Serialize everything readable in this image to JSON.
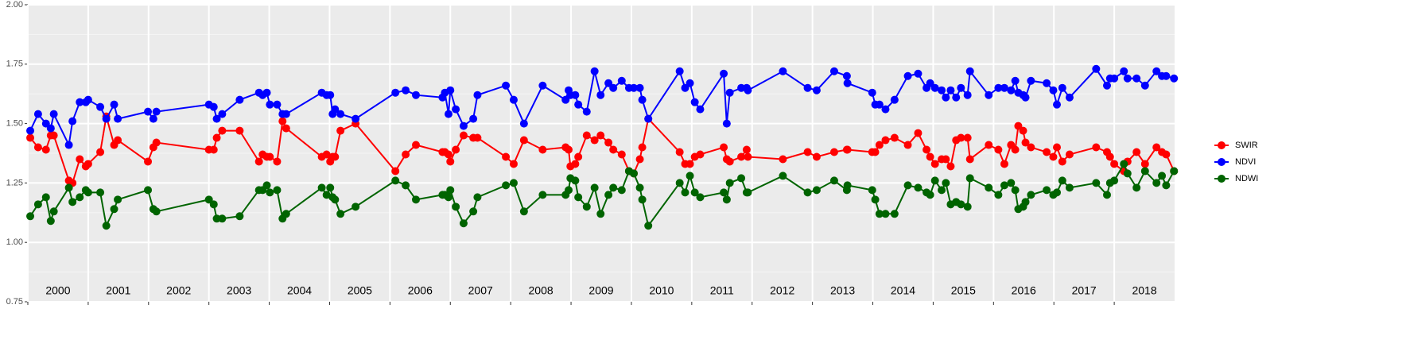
{
  "chart_data": {
    "type": "line",
    "x": [
      2000.04,
      2000.17,
      2000.3,
      2000.38,
      2000.43,
      2000.68,
      2000.74,
      2000.86,
      2000.96,
      2001.0,
      2001.2,
      2001.3,
      2001.43,
      2001.49,
      2001.99,
      2002.08,
      2002.13,
      2003.0,
      2003.08,
      2003.13,
      2003.22,
      2003.51,
      2003.83,
      2003.89,
      2003.96,
      2004.01,
      2004.13,
      2004.22,
      2004.28,
      2004.87,
      2004.95,
      2005.01,
      2005.05,
      2005.09,
      2005.18,
      2005.43,
      2006.09,
      2006.26,
      2006.43,
      2006.87,
      2006.91,
      2006.97,
      2007.0,
      2007.09,
      2007.22,
      2007.38,
      2007.45,
      2007.92,
      2008.05,
      2008.22,
      2008.53,
      2008.91,
      2008.96,
      2008.99,
      2009.07,
      2009.12,
      2009.26,
      2009.39,
      2009.49,
      2009.62,
      2009.7,
      2009.84,
      2009.96,
      2010.04,
      2010.14,
      2010.18,
      2010.28,
      2010.8,
      2010.89,
      2010.97,
      2011.05,
      2011.14,
      2011.53,
      2011.58,
      2011.63,
      2011.82,
      2011.91,
      2011.93,
      2012.51,
      2012.92,
      2013.07,
      2013.36,
      2013.57,
      2013.58,
      2013.99,
      2014.04,
      2014.11,
      2014.21,
      2014.36,
      2014.58,
      2014.75,
      2014.89,
      2014.95,
      2015.03,
      2015.14,
      2015.21,
      2015.29,
      2015.38,
      2015.46,
      2015.57,
      2015.61,
      2015.92,
      2016.08,
      2016.18,
      2016.29,
      2016.36,
      2016.41,
      2016.49,
      2016.53,
      2016.62,
      2016.88,
      2016.99,
      2017.05,
      2017.14,
      2017.26,
      2017.7,
      2017.88,
      2017.93,
      2018.0,
      2018.16,
      2018.22,
      2018.37,
      2018.51,
      2018.7,
      2018.79,
      2018.86,
      2018.99
    ],
    "series": [
      {
        "name": "SWIR",
        "color": "#ff0000",
        "values": [
          1.44,
          1.4,
          1.39,
          1.45,
          1.45,
          1.26,
          1.25,
          1.35,
          1.32,
          1.33,
          1.38,
          1.53,
          1.41,
          1.43,
          1.34,
          1.4,
          1.42,
          1.39,
          1.39,
          1.44,
          1.47,
          1.47,
          1.34,
          1.37,
          1.36,
          1.36,
          1.34,
          1.51,
          1.48,
          1.36,
          1.37,
          1.34,
          1.36,
          1.36,
          1.47,
          1.5,
          1.3,
          1.37,
          1.41,
          1.38,
          1.38,
          1.37,
          1.34,
          1.39,
          1.45,
          1.44,
          1.44,
          1.36,
          1.33,
          1.43,
          1.39,
          1.4,
          1.39,
          1.32,
          1.33,
          1.36,
          1.45,
          1.43,
          1.45,
          1.42,
          1.39,
          1.37,
          1.3,
          1.29,
          1.35,
          1.4,
          1.52,
          1.38,
          1.33,
          1.33,
          1.36,
          1.37,
          1.4,
          1.35,
          1.34,
          1.36,
          1.39,
          1.36,
          1.35,
          1.38,
          1.36,
          1.38,
          1.39,
          1.39,
          1.38,
          1.38,
          1.41,
          1.43,
          1.44,
          1.41,
          1.46,
          1.39,
          1.36,
          1.33,
          1.35,
          1.35,
          1.32,
          1.43,
          1.44,
          1.44,
          1.35,
          1.41,
          1.39,
          1.33,
          1.41,
          1.39,
          1.49,
          1.47,
          1.42,
          1.4,
          1.38,
          1.36,
          1.4,
          1.34,
          1.37,
          1.4,
          1.38,
          1.36,
          1.33,
          1.3,
          1.34,
          1.38,
          1.33,
          1.4,
          1.38,
          1.37,
          1.3
        ]
      },
      {
        "name": "NDVI",
        "color": "#0000ff",
        "values": [
          1.47,
          1.54,
          1.5,
          1.48,
          1.54,
          1.41,
          1.51,
          1.59,
          1.59,
          1.6,
          1.57,
          1.52,
          1.58,
          1.52,
          1.55,
          1.52,
          1.55,
          1.58,
          1.57,
          1.52,
          1.54,
          1.6,
          1.63,
          1.62,
          1.63,
          1.58,
          1.58,
          1.54,
          1.54,
          1.63,
          1.62,
          1.62,
          1.54,
          1.56,
          1.54,
          1.52,
          1.63,
          1.64,
          1.62,
          1.61,
          1.63,
          1.54,
          1.64,
          1.56,
          1.49,
          1.52,
          1.62,
          1.66,
          1.6,
          1.5,
          1.66,
          1.6,
          1.64,
          1.62,
          1.62,
          1.58,
          1.55,
          1.72,
          1.62,
          1.67,
          1.65,
          1.68,
          1.65,
          1.65,
          1.65,
          1.6,
          1.52,
          1.72,
          1.65,
          1.67,
          1.59,
          1.56,
          1.71,
          1.5,
          1.63,
          1.65,
          1.65,
          1.64,
          1.72,
          1.65,
          1.64,
          1.72,
          1.7,
          1.67,
          1.63,
          1.58,
          1.58,
          1.56,
          1.6,
          1.7,
          1.71,
          1.65,
          1.67,
          1.65,
          1.64,
          1.61,
          1.64,
          1.61,
          1.65,
          1.62,
          1.72,
          1.62,
          1.65,
          1.65,
          1.64,
          1.68,
          1.63,
          1.62,
          1.61,
          1.68,
          1.67,
          1.64,
          1.58,
          1.65,
          1.61,
          1.73,
          1.66,
          1.69,
          1.69,
          1.72,
          1.69,
          1.69,
          1.66,
          1.72,
          1.7,
          1.7,
          1.69
        ]
      },
      {
        "name": "NDWI",
        "color": "#006400",
        "values": [
          1.11,
          1.16,
          1.19,
          1.09,
          1.13,
          1.23,
          1.17,
          1.19,
          1.22,
          1.21,
          1.21,
          1.07,
          1.14,
          1.18,
          1.22,
          1.14,
          1.13,
          1.18,
          1.16,
          1.1,
          1.1,
          1.11,
          1.22,
          1.22,
          1.24,
          1.21,
          1.22,
          1.1,
          1.12,
          1.23,
          1.2,
          1.23,
          1.19,
          1.18,
          1.12,
          1.15,
          1.26,
          1.24,
          1.18,
          1.2,
          1.2,
          1.19,
          1.22,
          1.15,
          1.08,
          1.13,
          1.19,
          1.24,
          1.25,
          1.13,
          1.2,
          1.2,
          1.22,
          1.27,
          1.26,
          1.19,
          1.15,
          1.23,
          1.12,
          1.2,
          1.23,
          1.22,
          1.3,
          1.29,
          1.23,
          1.18,
          1.07,
          1.25,
          1.21,
          1.28,
          1.21,
          1.19,
          1.21,
          1.18,
          1.25,
          1.27,
          1.21,
          1.21,
          1.28,
          1.21,
          1.22,
          1.26,
          1.22,
          1.24,
          1.22,
          1.18,
          1.12,
          1.12,
          1.12,
          1.24,
          1.23,
          1.21,
          1.2,
          1.26,
          1.22,
          1.25,
          1.16,
          1.17,
          1.16,
          1.15,
          1.27,
          1.23,
          1.2,
          1.24,
          1.25,
          1.22,
          1.14,
          1.15,
          1.17,
          1.2,
          1.22,
          1.2,
          1.21,
          1.26,
          1.23,
          1.25,
          1.2,
          1.25,
          1.26,
          1.33,
          1.29,
          1.23,
          1.3,
          1.25,
          1.28,
          1.24,
          1.3
        ]
      }
    ],
    "xlim": [
      2000,
      2019
    ],
    "xticks": [
      2000,
      2001,
      2002,
      2003,
      2004,
      2005,
      2006,
      2007,
      2008,
      2009,
      2010,
      2011,
      2012,
      2013,
      2014,
      2015,
      2016,
      2017,
      2018
    ],
    "ylim": [
      0.75,
      2.0
    ],
    "yticks": [
      {
        "value": 0.75,
        "label": "0.75"
      },
      {
        "value": 1.0,
        "label": "1.00"
      },
      {
        "value": 1.25,
        "label": "1.25"
      },
      {
        "value": 1.5,
        "label": "1.50"
      },
      {
        "value": 1.75,
        "label": "1.75"
      },
      {
        "value": 2.0,
        "label": "2.00"
      }
    ],
    "grid": true,
    "legend": "right"
  }
}
